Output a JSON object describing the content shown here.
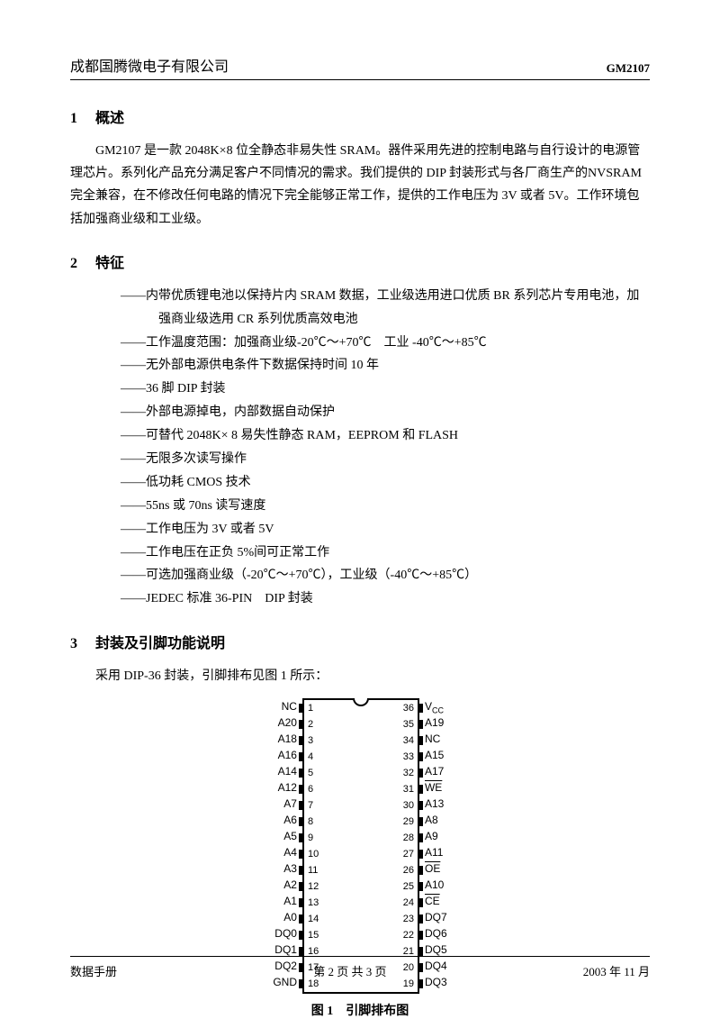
{
  "header": {
    "company": "成都国腾微电子有限公司",
    "part": "GM2107"
  },
  "sec1": {
    "num": "1",
    "title": "概述",
    "text": "GM2107 是一款 2048K×8 位全静态非易失性 SRAM。器件采用先进的控制电路与自行设计的电源管理芯片。系列化产品充分满足客户不同情况的需求。我们提供的 DIP 封装形式与各厂商生产的NVSRAM 完全兼容，在不修改任何电路的情况下完全能够正常工作，提供的工作电压为 3V 或者 5V。工作环境包括加强商业级和工业级。"
  },
  "sec2": {
    "num": "2",
    "title": "特征",
    "items": [
      "——内带优质锂电池以保持片内 SRAM 数据，工业级选用进口优质 BR 系列芯片专用电池，加",
      "强商业级选用 CR 系列优质高效电池",
      "——工作温度范围：加强商业级-20℃～+70℃　工业 -40℃～+85℃",
      "——无外部电源供电条件下数据保持时间 10 年",
      "——36 脚 DIP 封装",
      "——外部电源掉电，内部数据自动保护",
      "——可替代 2048K× 8 易失性静态 RAM，EEPROM 和 FLASH",
      "——无限多次读写操作",
      "——低功耗 CMOS 技术",
      "——55ns 或 70ns 读写速度",
      "——工作电压为 3V 或者 5V",
      "——工作电压在正负 5%间可正常工作",
      "——可选加强商业级（-20℃～+70℃），工业级（-40℃～+85℃）",
      "——JEDEC 标准 36-PIN　DIP 封装"
    ]
  },
  "sec3": {
    "num": "3",
    "title": "封装及引脚功能说明",
    "intro": "采用 DIP-36 封装，引脚排布见图 1 所示："
  },
  "pinout": {
    "left": [
      {
        "n": 1,
        "l": "NC"
      },
      {
        "n": 2,
        "l": "A20"
      },
      {
        "n": 3,
        "l": "A18"
      },
      {
        "n": 4,
        "l": "A16"
      },
      {
        "n": 5,
        "l": "A14"
      },
      {
        "n": 6,
        "l": "A12"
      },
      {
        "n": 7,
        "l": "A7"
      },
      {
        "n": 8,
        "l": "A6"
      },
      {
        "n": 9,
        "l": "A5"
      },
      {
        "n": 10,
        "l": "A4"
      },
      {
        "n": 11,
        "l": "A3"
      },
      {
        "n": 12,
        "l": "A2"
      },
      {
        "n": 13,
        "l": "A1"
      },
      {
        "n": 14,
        "l": "A0"
      },
      {
        "n": 15,
        "l": "DQ0"
      },
      {
        "n": 16,
        "l": "DQ1"
      },
      {
        "n": 17,
        "l": "DQ2"
      },
      {
        "n": 18,
        "l": "GND"
      }
    ],
    "right": [
      {
        "n": 36,
        "l": "Vcc",
        "sub": true
      },
      {
        "n": 35,
        "l": "A19"
      },
      {
        "n": 34,
        "l": "NC"
      },
      {
        "n": 33,
        "l": "A15"
      },
      {
        "n": 32,
        "l": "A17"
      },
      {
        "n": 31,
        "l": "WE",
        "ov": true
      },
      {
        "n": 30,
        "l": "A13"
      },
      {
        "n": 29,
        "l": "A8"
      },
      {
        "n": 28,
        "l": "A9"
      },
      {
        "n": 27,
        "l": "A11"
      },
      {
        "n": 26,
        "l": "OE",
        "ov": true
      },
      {
        "n": 25,
        "l": "A10"
      },
      {
        "n": 24,
        "l": "CE",
        "ov": true
      },
      {
        "n": 23,
        "l": "DQ7"
      },
      {
        "n": 22,
        "l": "DQ6"
      },
      {
        "n": 21,
        "l": "DQ5"
      },
      {
        "n": 20,
        "l": "DQ4"
      },
      {
        "n": 19,
        "l": "DQ3"
      }
    ],
    "caption": "图 1　引脚排布图"
  },
  "footer": {
    "left": "数据手册",
    "center": "第 2 页 共 3 页",
    "right": "2003 年 11 月"
  }
}
